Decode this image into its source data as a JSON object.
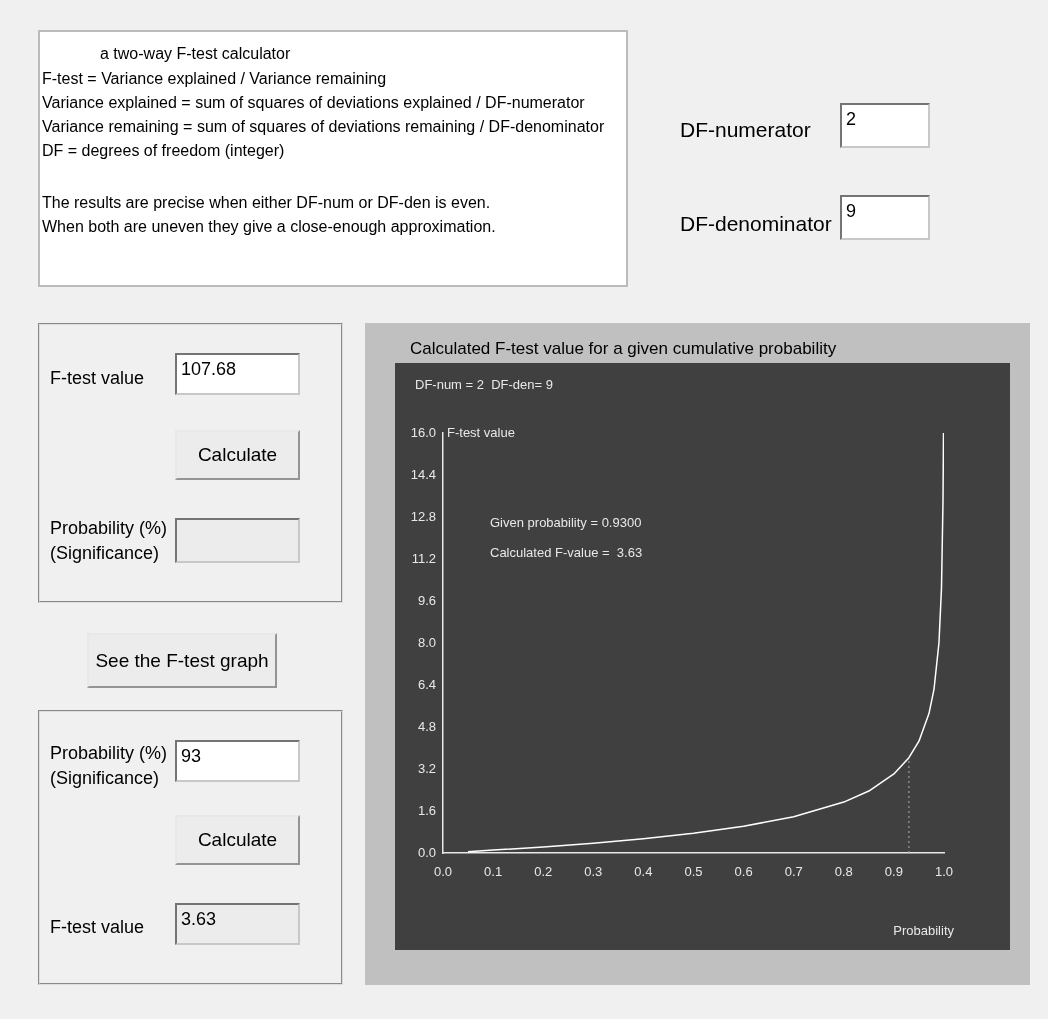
{
  "chart_data": {
    "type": "line",
    "title": "Calculated F-test value for a given cumulative probability",
    "xlabel": "Probability",
    "ylabel": "F-test value",
    "series": [
      {
        "color": "#ffffff",
        "x": [
          0.05,
          0.1,
          0.2,
          0.3,
          0.4,
          0.5,
          0.6,
          0.7,
          0.8,
          0.85,
          0.9,
          0.93,
          0.95,
          0.97,
          0.98,
          0.99,
          0.995,
          0.998,
          0.999
        ],
        "values": [
          0.05,
          0.11,
          0.23,
          0.37,
          0.54,
          0.75,
          1.02,
          1.38,
          1.94,
          2.36,
          3.01,
          3.63,
          4.26,
          5.31,
          6.23,
          8.02,
          10.1,
          13.4,
          16.0
        ]
      }
    ],
    "xlim": [
      0,
      1
    ],
    "xticks": [
      {
        "value": 0,
        "label": "0.0"
      },
      0.1,
      0.2,
      0.3,
      0.4,
      0.5,
      0.6,
      0.7,
      0.8,
      0.9,
      {
        "value": 1,
        "label": "1.0"
      }
    ],
    "ylim": [
      0,
      16
    ],
    "yticks": [
      {
        "value": 0,
        "label": "0.0"
      },
      1.6,
      3.2,
      4.8,
      6.4,
      {
        "value": 8,
        "label": "8.0"
      },
      9.6,
      11.2,
      12.8,
      14.4,
      {
        "value": 16,
        "label": "16.0"
      }
    ],
    "ref_lines": [
      {
        "axis": "x",
        "value": 0.93,
        "color": "#b0b0b0",
        "line_style": "dotted"
      }
    ],
    "grid": false,
    "legend": false,
    "marker": "none",
    "line_style": "solid",
    "annotations": [
      "a two-way F-test calculator",
      "F-test = Variance explained  / Variance remaining",
      "Variance explained = sum of squares of deviations explained / DF-numerator",
      "Variance remaining = sum of squares of deviations remaining / DF-denominator",
      "DF = degrees of freedom (integer)",
      "The results are precise when either DF-num or DF-den is even.",
      "When both are uneven they give a close-enough approximation.",
      "DF-numerator",
      "2",
      "DF-denominator",
      "9",
      "F-test value",
      "107.68",
      "Calculate",
      "Probability (%)",
      "(Significance)",
      "See the F-test graph",
      "Probability (%)",
      "(Significance)",
      "93",
      "Calculate",
      "F-test value",
      "3.63",
      "DF-num = 2  DF-den= 9",
      "Given probability = 0.9300",
      "Calculated F-value =  3.63"
    ]
  }
}
